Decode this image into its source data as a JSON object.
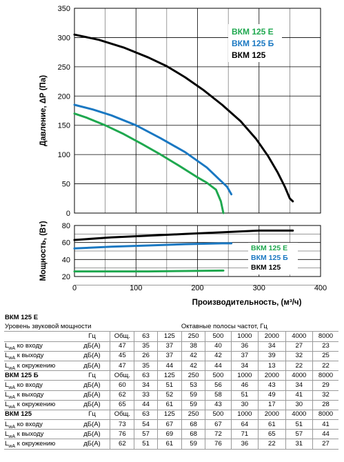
{
  "chart_data": [
    {
      "type": "line",
      "ylabel": "Давление, ΔP (Па)",
      "xlim": [
        0,
        400
      ],
      "ylim": [
        0,
        350
      ],
      "yticks": [
        0,
        50,
        100,
        150,
        200,
        250,
        300,
        350
      ],
      "grid": true,
      "legend_position": "top-right",
      "series": [
        {
          "name": "ВКМ 125 Е",
          "color": "#1fa84f",
          "x": [
            0,
            20,
            50,
            80,
            110,
            140,
            170,
            200,
            215,
            230,
            238,
            242
          ],
          "y": [
            170,
            163,
            150,
            135,
            118,
            100,
            81,
            61,
            52,
            40,
            20,
            0
          ]
        },
        {
          "name": "ВКМ 125 Б",
          "color": "#1a78c2",
          "x": [
            0,
            30,
            60,
            100,
            140,
            180,
            215,
            235,
            248,
            255
          ],
          "y": [
            185,
            177,
            167,
            150,
            128,
            104,
            78,
            58,
            45,
            32
          ]
        },
        {
          "name": "ВКМ 125",
          "color": "#000000",
          "x": [
            0,
            40,
            80,
            120,
            150,
            180,
            210,
            240,
            270,
            295,
            315,
            330,
            342,
            350,
            355
          ],
          "y": [
            305,
            296,
            283,
            266,
            251,
            232,
            210,
            185,
            157,
            127,
            97,
            70,
            45,
            25,
            20
          ]
        }
      ]
    },
    {
      "type": "line",
      "xlabel": "Производительность, (м³/ч)",
      "ylabel": "Мощность, (Вт)",
      "xlim": [
        0,
        400
      ],
      "ylim": [
        20,
        80
      ],
      "xticks": [
        0,
        100,
        200,
        300,
        400
      ],
      "yticks": [
        20,
        40,
        60,
        80
      ],
      "grid": true,
      "legend_position": "right",
      "series": [
        {
          "name": "ВКМ 125 Е",
          "color": "#1fa84f",
          "x": [
            0,
            60,
            120,
            180,
            242
          ],
          "y": [
            26,
            26,
            26,
            26.5,
            27
          ]
        },
        {
          "name": "ВКМ 125 Б",
          "color": "#1a78c2",
          "x": [
            0,
            60,
            120,
            180,
            240,
            255
          ],
          "y": [
            53,
            55,
            56.5,
            58,
            59,
            59
          ]
        },
        {
          "name": "ВКМ 125",
          "color": "#000000",
          "x": [
            0,
            60,
            120,
            180,
            240,
            300,
            355
          ],
          "y": [
            63,
            66,
            68,
            70,
            72,
            74,
            74
          ]
        }
      ]
    }
  ],
  "table": {
    "columns": [
      "Гц",
      "Общ.",
      "63",
      "125",
      "250",
      "500",
      "1000",
      "2000",
      "4000",
      "8000"
    ],
    "band_header": "Октавные полосы частот, Гц",
    "sound_label": "Уровень звуковой мощности",
    "groups": [
      {
        "title": "ВКМ 125 Е",
        "rows": [
          {
            "label": "L",
            "sub": "wA",
            "text": " ко входу",
            "unit": "дБ(А)",
            "values": [
              "47",
              "35",
              "37",
              "38",
              "40",
              "36",
              "34",
              "27",
              "23"
            ]
          },
          {
            "label": "L",
            "sub": "wA",
            "text": " к выходу",
            "unit": "дБ(А)",
            "values": [
              "45",
              "26",
              "37",
              "42",
              "42",
              "37",
              "39",
              "32",
              "25"
            ]
          },
          {
            "label": "L",
            "sub": "wA",
            "text": " к окружению",
            "unit": "дБ(А)",
            "values": [
              "47",
              "35",
              "44",
              "42",
              "44",
              "34",
              "13",
              "22",
              "22"
            ]
          }
        ]
      },
      {
        "title": "ВКМ 125 Б",
        "rows": [
          {
            "label": "L",
            "sub": "wA",
            "text": " ко входу",
            "unit": "дБ(А)",
            "values": [
              "60",
              "34",
              "51",
              "53",
              "56",
              "46",
              "43",
              "34",
              "29"
            ]
          },
          {
            "label": "L",
            "sub": "wA",
            "text": " к выходу",
            "unit": "дБ(А)",
            "values": [
              "62",
              "33",
              "52",
              "59",
              "58",
              "51",
              "49",
              "41",
              "32"
            ]
          },
          {
            "label": "L",
            "sub": "wA",
            "text": " к окружению",
            "unit": "дБ(А)",
            "values": [
              "65",
              "44",
              "61",
              "59",
              "43",
              "30",
              "17",
              "30",
              "28"
            ]
          }
        ]
      },
      {
        "title": "ВКМ 125",
        "rows": [
          {
            "label": "L",
            "sub": "wA",
            "text": " ко входу",
            "unit": "дБ(А)",
            "values": [
              "73",
              "54",
              "67",
              "68",
              "67",
              "64",
              "61",
              "51",
              "41"
            ]
          },
          {
            "label": "L",
            "sub": "wA",
            "text": " к выходу",
            "unit": "дБ(А)",
            "values": [
              "76",
              "57",
              "69",
              "68",
              "72",
              "71",
              "65",
              "57",
              "44"
            ]
          },
          {
            "label": "L",
            "sub": "wA",
            "text": " к окружению",
            "unit": "дБ(А)",
            "values": [
              "62",
              "51",
              "61",
              "59",
              "76",
              "36",
              "22",
              "31",
              "27"
            ]
          }
        ]
      }
    ]
  }
}
